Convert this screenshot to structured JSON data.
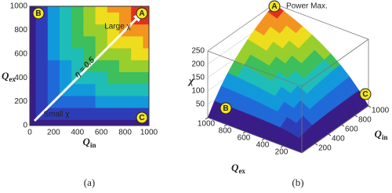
{
  "chart_data": [
    {
      "type": "heatmap",
      "caption": "(a)",
      "xlabel": {
        "symbol": "Q",
        "sub": "in"
      },
      "ylabel": {
        "symbol": "Q",
        "sub": "ex"
      },
      "x": [
        0,
        100,
        200,
        300,
        400,
        500,
        600,
        700,
        800,
        900,
        1000
      ],
      "y": [
        0,
        100,
        200,
        300,
        400,
        500,
        600,
        700,
        800,
        900,
        1000
      ],
      "z": [
        [
          0,
          0,
          0,
          0,
          0,
          0,
          0,
          0,
          0,
          0,
          0
        ],
        [
          0,
          25,
          33,
          38,
          40,
          42,
          43,
          44,
          44,
          45,
          45
        ],
        [
          0,
          33,
          50,
          60,
          67,
          71,
          75,
          78,
          80,
          82,
          83
        ],
        [
          0,
          38,
          60,
          75,
          86,
          94,
          100,
          105,
          109,
          113,
          115
        ],
        [
          0,
          40,
          67,
          86,
          100,
          111,
          120,
          127,
          133,
          138,
          143
        ],
        [
          0,
          42,
          71,
          94,
          111,
          125,
          136,
          146,
          154,
          161,
          167
        ],
        [
          0,
          43,
          75,
          100,
          120,
          136,
          150,
          162,
          171,
          180,
          188
        ],
        [
          0,
          44,
          78,
          105,
          127,
          146,
          162,
          175,
          187,
          197,
          206
        ],
        [
          0,
          44,
          80,
          109,
          133,
          154,
          171,
          187,
          200,
          212,
          222
        ],
        [
          0,
          45,
          82,
          113,
          138,
          161,
          180,
          197,
          212,
          225,
          237
        ],
        [
          0,
          45,
          83,
          115,
          143,
          167,
          188,
          206,
          222,
          237,
          250
        ]
      ],
      "zlim": [
        0,
        250
      ],
      "colors": [
        "#3a1c87",
        "#2f3cb8",
        "#1f6ad8",
        "#1299dc",
        "#1fbdb8",
        "#3cbf5c",
        "#98cf2c",
        "#eedd1c",
        "#f39421",
        "#e0311f"
      ],
      "xlim": [
        0,
        1000
      ],
      "ylim": [
        0,
        1000
      ],
      "xticks": [
        0,
        200,
        400,
        600,
        800,
        1000
      ],
      "yticks": [
        0,
        200,
        400,
        600,
        800,
        1000
      ],
      "annotations": {
        "diagonal": "η = 0.5",
        "large": "Large χ",
        "small": "Small χ",
        "A": "A",
        "B": "B",
        "C": "C"
      }
    },
    {
      "type": "surface",
      "caption": "(b)",
      "xlabel": {
        "symbol": "Q",
        "sub": "in"
      },
      "ylabel": {
        "symbol": "Q",
        "sub": "ex"
      },
      "zlabel": "χ",
      "x": [
        0,
        100,
        200,
        300,
        400,
        500,
        600,
        700,
        800,
        900,
        1000
      ],
      "y": [
        0,
        100,
        200,
        300,
        400,
        500,
        600,
        700,
        800,
        900,
        1000
      ],
      "z": [
        [
          0,
          0,
          0,
          0,
          0,
          0,
          0,
          0,
          0,
          0,
          0
        ],
        [
          0,
          25,
          33,
          38,
          40,
          42,
          43,
          44,
          44,
          45,
          45
        ],
        [
          0,
          33,
          50,
          60,
          67,
          71,
          75,
          78,
          80,
          82,
          83
        ],
        [
          0,
          38,
          60,
          75,
          86,
          94,
          100,
          105,
          109,
          113,
          115
        ],
        [
          0,
          40,
          67,
          86,
          100,
          111,
          120,
          127,
          133,
          138,
          143
        ],
        [
          0,
          42,
          71,
          94,
          111,
          125,
          136,
          146,
          154,
          161,
          167
        ],
        [
          0,
          43,
          75,
          100,
          120,
          136,
          150,
          162,
          171,
          180,
          188
        ],
        [
          0,
          44,
          78,
          105,
          127,
          146,
          162,
          175,
          187,
          197,
          206
        ],
        [
          0,
          44,
          80,
          109,
          133,
          154,
          171,
          187,
          200,
          212,
          222
        ],
        [
          0,
          45,
          82,
          113,
          138,
          161,
          180,
          197,
          212,
          225,
          237
        ],
        [
          0,
          45,
          83,
          115,
          143,
          167,
          188,
          206,
          222,
          237,
          250
        ]
      ],
      "zlim": [
        0,
        250
      ],
      "colors": [
        "#3a1c87",
        "#2f3cb8",
        "#1f6ad8",
        "#1299dc",
        "#1fbdb8",
        "#3cbf5c",
        "#98cf2c",
        "#eedd1c",
        "#f39421",
        "#e0311f"
      ],
      "xlim": [
        0,
        1000
      ],
      "ylim": [
        0,
        1000
      ],
      "xticks": [
        200,
        400,
        600,
        800,
        1000
      ],
      "yticks": [
        200,
        400,
        600,
        800,
        1000
      ],
      "zticks": [
        50,
        100,
        150,
        200,
        250
      ],
      "annotations": {
        "peak": "Power Max.",
        "A": "A",
        "B": "B",
        "C": "C"
      }
    }
  ]
}
